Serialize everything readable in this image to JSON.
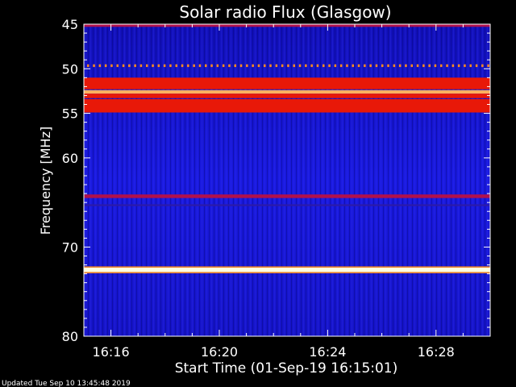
{
  "chart_data": {
    "type": "heatmap",
    "title": "Solar radio Flux (Glasgow)",
    "ylabel": "Frequency [MHz]",
    "xlabel": "Start Time (01-Sep-19 16:15:01)",
    "footer": "Updated Tue Sep 10 13:45:48 2019",
    "ylim_mhz": [
      45,
      80
    ],
    "y_axis_inverted": true,
    "y_ticks": [
      45,
      50,
      55,
      60,
      70,
      80
    ],
    "y_tick_labels": [
      "45",
      "50",
      "55",
      "60",
      "70",
      "80"
    ],
    "x_range": [
      "16:15",
      "16:30"
    ],
    "x_ticks": [
      "16:16",
      "16:20",
      "16:24",
      "16:28"
    ],
    "colormap": [
      "#00005a",
      "#0000c8",
      "#3a3cff",
      "#b00048",
      "#ff2000",
      "#ff9020",
      "#ffffe0"
    ],
    "background_level": "low (blue)",
    "emission_bands": [
      {
        "from_mhz": 45.0,
        "to_mhz": 45.3,
        "level": "medium"
      },
      {
        "from_mhz": 49.5,
        "to_mhz": 49.8,
        "level": "high",
        "pattern": "dashed"
      },
      {
        "from_mhz": 51.0,
        "to_mhz": 52.3,
        "level": "high"
      },
      {
        "from_mhz": 52.4,
        "to_mhz": 52.8,
        "level": "very high"
      },
      {
        "from_mhz": 52.8,
        "to_mhz": 53.3,
        "level": "high"
      },
      {
        "from_mhz": 53.4,
        "to_mhz": 54.9,
        "level": "high"
      },
      {
        "from_mhz": 64.1,
        "to_mhz": 64.5,
        "level": "medium"
      },
      {
        "from_mhz": 65.2,
        "to_mhz": 65.4,
        "level": "medium-low"
      },
      {
        "from_mhz": 72.3,
        "to_mhz": 72.8,
        "level": "saturated"
      }
    ]
  }
}
